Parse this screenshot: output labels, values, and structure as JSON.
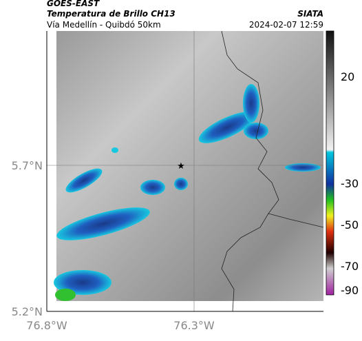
{
  "header": {
    "source": "GOES-EAST",
    "title": "Temperatura de Brillo CH13",
    "subtitle": "Vía Medellín - Quibdó 50km",
    "agency": "SIATA",
    "timestamp": "2024-02-07 12:59"
  },
  "axes": {
    "y_labels": [
      "5.7°N",
      "5.2°N"
    ],
    "x_labels": [
      "76.8°W",
      "76.3°W"
    ]
  },
  "colorbar": {
    "labels": [
      "20",
      "-30",
      "-50",
      "-70",
      "-90"
    ]
  }
}
